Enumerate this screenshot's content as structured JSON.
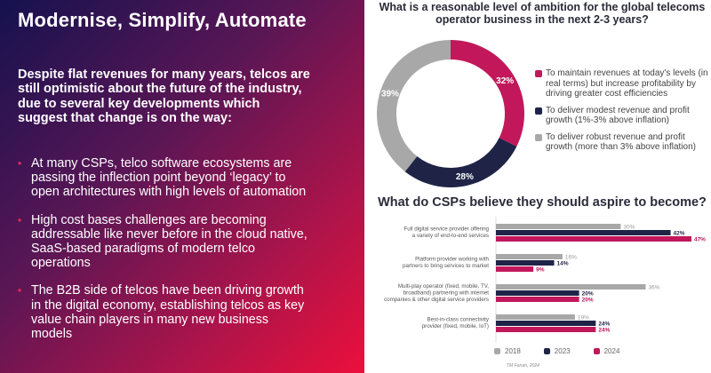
{
  "left": {
    "title": "Modernise, Simplify, Automate",
    "intro": "Despite flat revenues for many years, telcos are still optimistic about the future of the industry, due to several key developments which suggest that change is on the way:",
    "bullets": [
      "At many CSPs, telco software ecosystems are passing the inflection point beyond ‘legacy’ to open architectures with high levels of automation",
      "High cost bases challenges are becoming addressable like never before in the cloud native, SaaS-based paradigms of modern telco operations",
      "The B2B side of telcos have been driving growth in the digital economy, establishing telcos as key value chain players in many new business models"
    ]
  },
  "colors": {
    "pink": "#c2185b",
    "navy": "#1f2447",
    "gray": "#a8a8a8"
  },
  "source": "TM Forum, 2024",
  "chart_data": [
    {
      "type": "pie",
      "title": "What is a reasonable level of ambition for the global telecoms operator business in the next 2-3 years?",
      "slices": [
        {
          "label": "To maintain revenues at today's levels (in real terms) but increase profitability by driving greater cost efficiencies",
          "value": 32,
          "display": "32%",
          "color": "#c2185b"
        },
        {
          "label": "To deliver modest revenue and profit growth (1%-3% above inflation)",
          "value": 28,
          "display": "28%",
          "color": "#1f2447"
        },
        {
          "label": "To deliver robust revenue and profit growth (more than 3% above inflation)",
          "value": 39,
          "display": "39%",
          "color": "#a8a8a8"
        }
      ]
    },
    {
      "type": "bar",
      "orientation": "horizontal",
      "title": "What do CSPs believe they should aspire to become?",
      "categories": [
        [
          "Full digital service provider offering",
          "a variety of end-to-end services"
        ],
        [
          "Platform provider working with",
          "partners to bring services to market"
        ],
        [
          "Multi-play operator (fixed, mobile, TV,",
          "broadband) partnering with internet",
          "companies & other digital service providers"
        ],
        [
          "Best-in-class connectivity",
          "provider (fixed, mobile, IoT)"
        ]
      ],
      "series": [
        {
          "name": "2018",
          "values": [
            30,
            16,
            36,
            19
          ],
          "color": "#a8a8a8"
        },
        {
          "name": "2023",
          "values": [
            42,
            14,
            20,
            24
          ],
          "color": "#1f2447"
        },
        {
          "name": "2024",
          "values": [
            47,
            9,
            20,
            24
          ],
          "color": "#c2185b"
        }
      ],
      "xlim": [
        0,
        50
      ],
      "grid": false,
      "legend": "bottom"
    }
  ]
}
